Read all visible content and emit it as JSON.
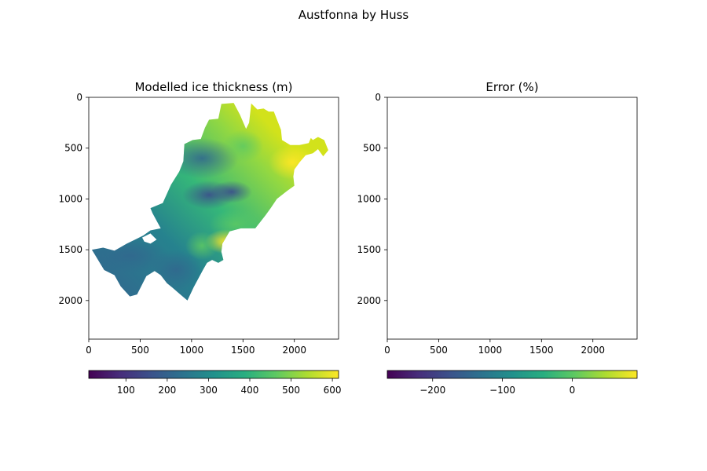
{
  "figure": {
    "suptitle": "Austfonna by Huss"
  },
  "chart_data": [
    {
      "type": "heatmap",
      "title": "Modelled ice thickness (m)",
      "xlim": [
        0,
        2430
      ],
      "ylim": [
        2380,
        0
      ],
      "x_ticks": [
        0,
        500,
        1000,
        1500,
        2000
      ],
      "y_ticks": [
        0,
        500,
        1000,
        1500,
        2000
      ],
      "colormap": "viridis",
      "colorbar": {
        "orientation": "horizontal",
        "range": [
          10,
          615
        ],
        "ticks": [
          100,
          200,
          300,
          400,
          500,
          600
        ]
      },
      "grid": false,
      "outline": [
        [
          1290,
          65
        ],
        [
          1410,
          55
        ],
        [
          1470,
          170
        ],
        [
          1530,
          310
        ],
        [
          1560,
          250
        ],
        [
          1580,
          60
        ],
        [
          1640,
          120
        ],
        [
          1700,
          110
        ],
        [
          1750,
          140
        ],
        [
          1800,
          140
        ],
        [
          1870,
          320
        ],
        [
          1880,
          420
        ],
        [
          1960,
          470
        ],
        [
          2050,
          470
        ],
        [
          2140,
          450
        ],
        [
          2160,
          400
        ],
        [
          2180,
          420
        ],
        [
          2230,
          390
        ],
        [
          2290,
          420
        ],
        [
          2330,
          520
        ],
        [
          2280,
          580
        ],
        [
          2230,
          510
        ],
        [
          2180,
          550
        ],
        [
          2110,
          570
        ],
        [
          2050,
          640
        ],
        [
          2000,
          710
        ],
        [
          1990,
          780
        ],
        [
          2000,
          870
        ],
        [
          1930,
          920
        ],
        [
          1830,
          1000
        ],
        [
          1770,
          1090
        ],
        [
          1720,
          1160
        ],
        [
          1620,
          1290
        ],
        [
          1480,
          1290
        ],
        [
          1370,
          1320
        ],
        [
          1300,
          1440
        ],
        [
          1290,
          1520
        ],
        [
          1310,
          1600
        ],
        [
          1260,
          1630
        ],
        [
          1200,
          1600
        ],
        [
          1150,
          1630
        ],
        [
          1110,
          1700
        ],
        [
          1020,
          1870
        ],
        [
          960,
          2000
        ],
        [
          890,
          1940
        ],
        [
          810,
          1870
        ],
        [
          760,
          1830
        ],
        [
          700,
          1750
        ],
        [
          640,
          1710
        ],
        [
          560,
          1760
        ],
        [
          470,
          1940
        ],
        [
          400,
          1960
        ],
        [
          310,
          1860
        ],
        [
          250,
          1750
        ],
        [
          150,
          1700
        ],
        [
          60,
          1550
        ],
        [
          30,
          1500
        ],
        [
          140,
          1480
        ],
        [
          250,
          1510
        ],
        [
          370,
          1440
        ],
        [
          450,
          1400
        ],
        [
          530,
          1360
        ],
        [
          600,
          1310
        ],
        [
          700,
          1290
        ],
        [
          620,
          1140
        ],
        [
          600,
          1090
        ],
        [
          720,
          1040
        ],
        [
          800,
          860
        ],
        [
          880,
          730
        ],
        [
          920,
          630
        ],
        [
          930,
          460
        ],
        [
          1010,
          420
        ],
        [
          1090,
          410
        ],
        [
          1130,
          300
        ],
        [
          1170,
          220
        ],
        [
          1260,
          210
        ]
      ],
      "holes": [
        [
          [
            520,
            1380
          ],
          [
            600,
            1340
          ],
          [
            660,
            1400
          ],
          [
            600,
            1440
          ],
          [
            540,
            1420
          ]
        ]
      ]
    },
    {
      "type": "heatmap",
      "title": "Error (%)",
      "xlim": [
        0,
        2430
      ],
      "ylim": [
        2380,
        0
      ],
      "x_ticks": [
        0,
        500,
        1000,
        1500,
        2000
      ],
      "y_ticks": [
        0,
        500,
        1000,
        1500,
        2000
      ],
      "colormap": "viridis",
      "colorbar": {
        "orientation": "horizontal",
        "range": [
          -265,
          93
        ],
        "ticks": [
          -200,
          -100,
          0
        ]
      },
      "grid": false,
      "values": []
    }
  ]
}
